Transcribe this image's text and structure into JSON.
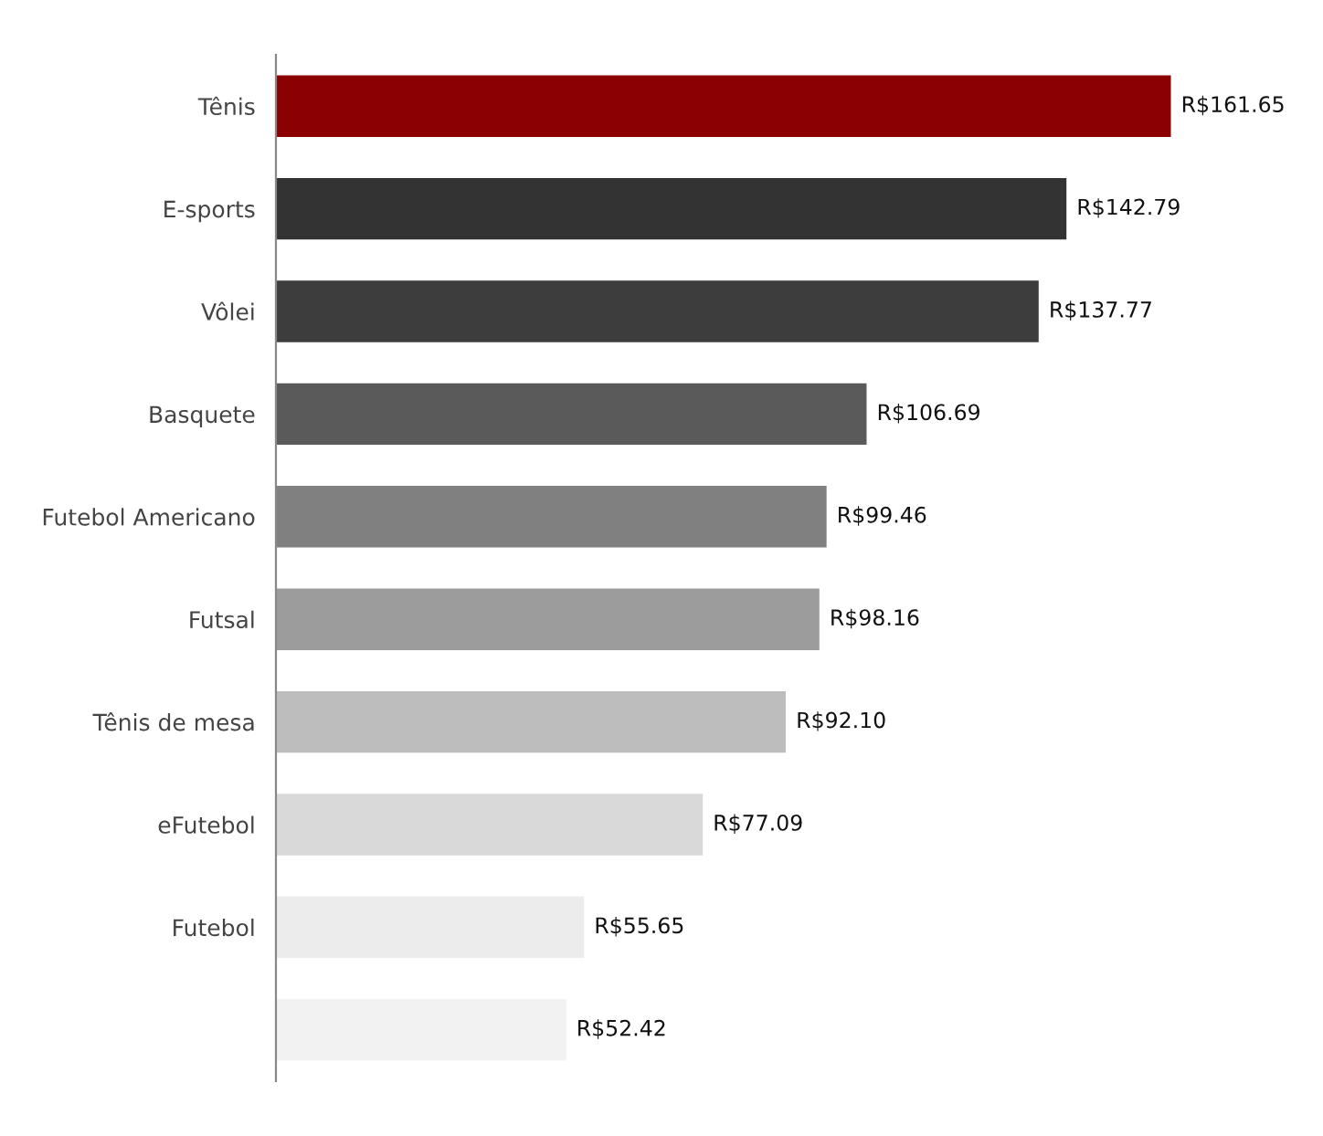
{
  "chart_data": {
    "type": "bar",
    "orientation": "horizontal",
    "categories": [
      "Tênis",
      "E-sports",
      "Vôlei",
      "Basquete",
      "Futebol Americano",
      "Futsal",
      "Tênis de mesa",
      "eFutebol",
      "Futebol",
      null
    ],
    "values": [
      161.65,
      142.79,
      137.77,
      106.69,
      99.46,
      98.16,
      92.1,
      77.09,
      55.65,
      52.42
    ],
    "colors": [
      "#8b0000",
      "#333333",
      "#3d3d3d",
      "#5a5a5a",
      "#808080",
      "#9c9c9c",
      "#bdbdbd",
      "#d9d9d9",
      "#ececec",
      "#f2f2f2"
    ],
    "value_labels": [
      "R$161.65",
      "R$142.79",
      "R$137.77",
      "R$106.69",
      "R$99.46",
      "R$98.16",
      "R$92.10",
      "R$77.09",
      "R$55.65",
      "R$52.42"
    ],
    "tick_labels": "y",
    "grid": false,
    "legend": false
  }
}
